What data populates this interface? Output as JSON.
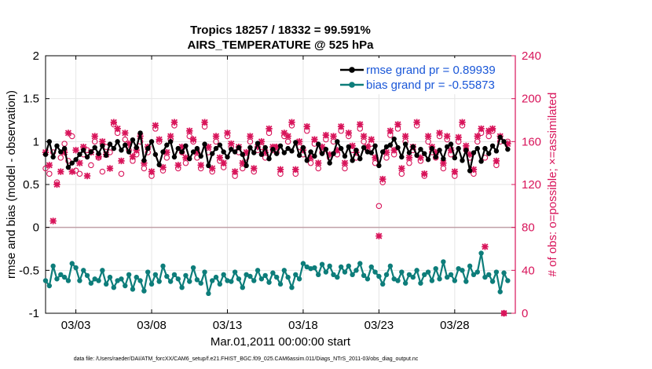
{
  "chart_data": {
    "type": "line",
    "title": "Tropics 18257 / 18332 = 99.591%",
    "subtitle": "AIRS_TEMPERATURE @ 525 hPa",
    "xlabel": "Mar.01,2011 00:00:00 start",
    "ylabel_left": "rmse and bias (model - observation)",
    "ylabel_right": "# of obs: o=possible; ×=assimilated",
    "footnote": "data file: /Users/raeder/DAI/ATM_forcXX/CAM6_setup/f.e21.FHIST_BGC.f09_025.CAM6assim.011/Diags_NTrS_2011-03/obs_diag_output.nc",
    "xlim": [
      1,
      32
    ],
    "ylim_left": [
      -1,
      2
    ],
    "ylim_right": [
      0,
      240
    ],
    "x_ticks": [
      3,
      8,
      13,
      18,
      23,
      28
    ],
    "x_tick_labels": [
      "03/03",
      "03/08",
      "03/13",
      "03/18",
      "03/23",
      "03/28"
    ],
    "y_ticks_left": [
      -1,
      -0.5,
      0,
      0.5,
      1,
      1.5,
      2
    ],
    "y_tick_labels_left": [
      "-1",
      "-0.5",
      "0",
      "0.5",
      "1",
      "1.5",
      "2"
    ],
    "y_ticks_right": [
      0,
      40,
      80,
      120,
      160,
      200,
      240
    ],
    "y_tick_labels_right": [
      "0",
      "40",
      "80",
      "120",
      "160",
      "200",
      "240"
    ],
    "colors": {
      "rmse": "#000000",
      "bias": "#0d7d7a",
      "obs": "#d8145a",
      "zero_line": "#c0a0a8",
      "legend_text": "#1a57d8",
      "grid": "#e6e6e6"
    },
    "series": [
      {
        "name": "rmse grand pr = 0.89939",
        "x": [
          1.0,
          1.25,
          1.5,
          1.75,
          2.0,
          2.25,
          2.5,
          2.75,
          3.0,
          3.25,
          3.5,
          3.75,
          4.0,
          4.25,
          4.5,
          4.75,
          5.0,
          5.25,
          5.5,
          5.75,
          6.0,
          6.25,
          6.5,
          6.75,
          7.0,
          7.25,
          7.5,
          7.75,
          8.0,
          8.25,
          8.5,
          8.75,
          9.0,
          9.25,
          9.5,
          9.75,
          10.0,
          10.25,
          10.5,
          10.75,
          11.0,
          11.25,
          11.5,
          11.75,
          12.0,
          12.25,
          12.5,
          12.75,
          13.0,
          13.25,
          13.5,
          13.75,
          14.0,
          14.25,
          14.5,
          14.75,
          15.0,
          15.25,
          15.5,
          15.75,
          16.0,
          16.25,
          16.5,
          16.75,
          17.0,
          17.25,
          17.5,
          17.75,
          18.0,
          18.25,
          18.5,
          18.75,
          19.0,
          19.25,
          19.5,
          19.75,
          20.0,
          20.25,
          20.5,
          20.75,
          21.0,
          21.25,
          21.5,
          21.75,
          22.0,
          22.25,
          22.5,
          22.75,
          23.0,
          23.25,
          23.5,
          23.75,
          24.0,
          24.25,
          24.5,
          24.75,
          25.0,
          25.25,
          25.5,
          25.75,
          26.0,
          26.25,
          26.5,
          26.75,
          27.0,
          27.25,
          27.5,
          27.75,
          28.0,
          28.25,
          28.5,
          28.75,
          29.0,
          29.25,
          29.5,
          29.75,
          30.0,
          30.25,
          30.5,
          30.75,
          31.0,
          31.25,
          31.5
        ],
        "values": [
          0.85,
          1.0,
          0.82,
          0.95,
          0.88,
          0.92,
          0.7,
          0.75,
          0.79,
          0.85,
          0.9,
          0.82,
          0.88,
          0.93,
          0.86,
          0.95,
          0.84,
          0.97,
          0.92,
          1.0,
          0.9,
          0.96,
          0.88,
          1.02,
          0.93,
          1.1,
          0.78,
          0.92,
          1.0,
          0.85,
          0.73,
          0.88,
          0.96,
          1.0,
          0.82,
          0.92,
          0.88,
          0.95,
          0.8,
          0.88,
          0.92,
          0.83,
          0.97,
          0.72,
          0.86,
          0.92,
          0.96,
          0.88,
          0.82,
          0.91,
          0.88,
          0.93,
          0.85,
          0.72,
          0.93,
          0.87,
          0.98,
          0.85,
          0.93,
          0.8,
          0.91,
          0.86,
          0.95,
          0.87,
          0.92,
          0.89,
          0.99,
          0.84,
          0.93,
          0.78,
          0.88,
          0.83,
          0.97,
          0.86,
          0.91,
          0.75,
          0.86,
          1.0,
          0.92,
          0.83,
          0.94,
          0.78,
          0.9,
          0.8,
          0.93,
          0.88,
          0.87,
          0.95,
          0.72,
          0.88,
          0.94,
          0.96,
          1.03,
          0.93,
          0.82,
          0.97,
          0.87,
          0.94,
          0.84,
          0.91,
          0.86,
          0.79,
          0.92,
          0.82,
          0.9,
          0.8,
          0.94,
          0.97,
          0.81,
          0.92,
          0.78,
          0.9,
          0.66,
          0.87,
          0.92,
          0.77,
          0.92,
          0.86,
          0.95,
          0.89,
          1.05,
          1.0,
          0.91
        ]
      },
      {
        "name": "bias grand pr = -0.55873",
        "x": [
          1.0,
          1.25,
          1.5,
          1.75,
          2.0,
          2.25,
          2.5,
          2.75,
          3.0,
          3.25,
          3.5,
          3.75,
          4.0,
          4.25,
          4.5,
          4.75,
          5.0,
          5.25,
          5.5,
          5.75,
          6.0,
          6.25,
          6.5,
          6.75,
          7.0,
          7.25,
          7.5,
          7.75,
          8.0,
          8.25,
          8.5,
          8.75,
          9.0,
          9.25,
          9.5,
          9.75,
          10.0,
          10.25,
          10.5,
          10.75,
          11.0,
          11.25,
          11.5,
          11.75,
          12.0,
          12.25,
          12.5,
          12.75,
          13.0,
          13.25,
          13.5,
          13.75,
          14.0,
          14.25,
          14.5,
          14.75,
          15.0,
          15.25,
          15.5,
          15.75,
          16.0,
          16.25,
          16.5,
          16.75,
          17.0,
          17.25,
          17.5,
          17.75,
          18.0,
          18.25,
          18.5,
          18.75,
          19.0,
          19.25,
          19.5,
          19.75,
          20.0,
          20.25,
          20.5,
          20.75,
          21.0,
          21.25,
          21.5,
          21.75,
          22.0,
          22.25,
          22.5,
          22.75,
          23.0,
          23.25,
          23.5,
          23.75,
          24.0,
          24.25,
          24.5,
          24.75,
          25.0,
          25.25,
          25.5,
          25.75,
          26.0,
          26.25,
          26.5,
          26.75,
          27.0,
          27.25,
          27.5,
          27.75,
          28.0,
          28.25,
          28.5,
          28.75,
          29.0,
          29.25,
          29.5,
          29.75,
          30.0,
          30.25,
          30.5,
          30.75,
          31.0,
          31.25,
          31.5
        ],
        "values": [
          -0.62,
          -0.68,
          -0.45,
          -0.6,
          -0.55,
          -0.58,
          -0.62,
          -0.42,
          -0.47,
          -0.62,
          -0.5,
          -0.56,
          -0.65,
          -0.6,
          -0.62,
          -0.5,
          -0.66,
          -0.58,
          -0.7,
          -0.62,
          -0.6,
          -0.68,
          -0.55,
          -0.72,
          -0.58,
          -0.62,
          -0.74,
          -0.52,
          -0.66,
          -0.55,
          -0.63,
          -0.45,
          -0.57,
          -0.63,
          -0.55,
          -0.6,
          -0.7,
          -0.56,
          -0.63,
          -0.47,
          -0.61,
          -0.65,
          -0.52,
          -0.77,
          -0.62,
          -0.58,
          -0.66,
          -0.55,
          -0.62,
          -0.63,
          -0.52,
          -0.6,
          -0.7,
          -0.55,
          -0.57,
          -0.62,
          -0.5,
          -0.6,
          -0.56,
          -0.64,
          -0.53,
          -0.58,
          -0.66,
          -0.5,
          -0.58,
          -0.7,
          -0.55,
          -0.6,
          -0.42,
          -0.46,
          -0.48,
          -0.47,
          -0.55,
          -0.43,
          -0.52,
          -0.45,
          -0.55,
          -0.58,
          -0.46,
          -0.52,
          -0.45,
          -0.55,
          -0.5,
          -0.42,
          -0.56,
          -0.6,
          -0.46,
          -0.52,
          -0.57,
          -0.66,
          -0.55,
          -0.45,
          -0.6,
          -0.62,
          -0.52,
          -0.65,
          -0.55,
          -0.58,
          -0.5,
          -0.65,
          -0.55,
          -0.52,
          -0.62,
          -0.48,
          -0.6,
          -0.4,
          -0.58,
          -0.55,
          -0.62,
          -0.48,
          -0.5,
          -0.63,
          -0.45,
          -0.55,
          -0.52,
          -0.3,
          -0.58,
          -0.55,
          -0.63,
          -0.52,
          -0.75,
          -0.53,
          -0.62
        ]
      },
      {
        "name": "obs possible",
        "marker": "o",
        "axis": "right",
        "x": [
          1.0,
          1.25,
          1.5,
          1.75,
          2.0,
          2.25,
          2.5,
          2.75,
          3.0,
          3.25,
          3.5,
          3.75,
          4.0,
          4.25,
          4.5,
          4.75,
          5.0,
          5.25,
          5.5,
          5.75,
          6.0,
          6.25,
          6.5,
          6.75,
          7.0,
          7.25,
          7.5,
          7.75,
          8.0,
          8.25,
          8.5,
          8.75,
          9.0,
          9.25,
          9.5,
          9.75,
          10.0,
          10.25,
          10.5,
          10.75,
          11.0,
          11.25,
          11.5,
          11.75,
          12.0,
          12.25,
          12.5,
          12.75,
          13.0,
          13.25,
          13.5,
          13.75,
          14.0,
          14.25,
          14.5,
          14.75,
          15.0,
          15.25,
          15.5,
          15.75,
          16.0,
          16.25,
          16.5,
          16.75,
          17.0,
          17.25,
          17.5,
          17.75,
          18.0,
          18.25,
          18.5,
          18.75,
          19.0,
          19.25,
          19.5,
          19.75,
          20.0,
          20.25,
          20.5,
          20.75,
          21.0,
          21.25,
          21.5,
          21.75,
          22.0,
          22.25,
          22.5,
          22.75,
          23.0,
          23.25,
          23.5,
          23.75,
          24.0,
          24.25,
          24.5,
          24.75,
          25.0,
          25.25,
          25.5,
          25.75,
          26.0,
          26.25,
          26.5,
          26.75,
          27.0,
          27.25,
          27.5,
          27.75,
          28.0,
          28.25,
          28.5,
          28.75,
          29.0,
          29.25,
          29.5,
          29.75,
          30.0,
          30.25,
          30.5,
          30.75,
          31.0,
          31.25,
          31.5
        ],
        "values": [
          135,
          130,
          150,
          122,
          145,
          158,
          142,
          165,
          133,
          130,
          148,
          152,
          138,
          160,
          145,
          132,
          155,
          150,
          176,
          168,
          130,
          162,
          152,
          142,
          148,
          160,
          135,
          150,
          128,
          172,
          160,
          133,
          145,
          162,
          175,
          135,
          150,
          140,
          165,
          160,
          145,
          135,
          174,
          150,
          132,
          160,
          142,
          136,
          165,
          155,
          128,
          150,
          135,
          145,
          160,
          132,
          152,
          155,
          145,
          168,
          152,
          150,
          130,
          165,
          160,
          175,
          130,
          155,
          148,
          170,
          140,
          158,
          135,
          150,
          162,
          145,
          160,
          148,
          170,
          135,
          165,
          152,
          145,
          172,
          160,
          152,
          158,
          140,
          100,
          122,
          145,
          166,
          148,
          172,
          130,
          160,
          140,
          152,
          175,
          142,
          128,
          160,
          150,
          145,
          165,
          135,
          162,
          148,
          128,
          160,
          175,
          152,
          145,
          130,
          160,
          168,
          145,
          165,
          170,
          138,
          160,
          0,
          160
        ]
      },
      {
        "name": "obs assimilated",
        "marker": "x",
        "axis": "right",
        "x": [
          1.0,
          1.25,
          1.5,
          1.75,
          2.0,
          2.25,
          2.5,
          2.75,
          3.0,
          3.25,
          3.5,
          3.75,
          4.0,
          4.25,
          4.5,
          4.75,
          5.0,
          5.25,
          5.5,
          5.75,
          6.0,
          6.25,
          6.5,
          6.75,
          7.0,
          7.25,
          7.5,
          7.75,
          8.0,
          8.25,
          8.5,
          8.75,
          9.0,
          9.25,
          9.5,
          9.75,
          10.0,
          10.25,
          10.5,
          10.75,
          11.0,
          11.25,
          11.5,
          11.75,
          12.0,
          12.25,
          12.5,
          12.75,
          13.0,
          13.25,
          13.5,
          13.75,
          14.0,
          14.25,
          14.5,
          14.75,
          15.0,
          15.25,
          15.5,
          15.75,
          16.0,
          16.25,
          16.5,
          16.75,
          17.0,
          17.25,
          17.5,
          17.75,
          18.0,
          18.25,
          18.5,
          18.75,
          19.0,
          19.25,
          19.5,
          19.75,
          20.0,
          20.25,
          20.5,
          20.75,
          21.0,
          21.25,
          21.5,
          21.75,
          22.0,
          22.25,
          22.5,
          22.75,
          23.0,
          23.25,
          23.5,
          23.75,
          24.0,
          24.25,
          24.5,
          24.75,
          25.0,
          25.25,
          25.5,
          25.75,
          26.0,
          26.25,
          26.5,
          26.75,
          27.0,
          27.25,
          27.5,
          27.75,
          28.0,
          28.25,
          28.5,
          28.75,
          29.0,
          29.25,
          29.5,
          29.75,
          30.0,
          30.25,
          30.5,
          30.75,
          31.0,
          31.25,
          31.5
        ],
        "values": [
          150,
          138,
          86,
          120,
          132,
          150,
          168,
          132,
          152,
          140,
          155,
          128,
          150,
          165,
          146,
          160,
          148,
          135,
          178,
          172,
          142,
          168,
          158,
          146,
          152,
          165,
          140,
          155,
          132,
          175,
          162,
          136,
          150,
          165,
          178,
          138,
          155,
          145,
          170,
          162,
          150,
          138,
          178,
          155,
          135,
          165,
          145,
          140,
          168,
          158,
          132,
          155,
          140,
          150,
          165,
          135,
          155,
          160,
          150,
          172,
          155,
          155,
          134,
          168,
          165,
          178,
          134,
          160,
          152,
          174,
          145,
          162,
          140,
          155,
          166,
          148,
          165,
          152,
          174,
          140,
          168,
          156,
          150,
          176,
          165,
          155,
          162,
          145,
          72,
          125,
          150,
          170,
          152,
          176,
          135,
          165,
          145,
          155,
          178,
          145,
          130,
          165,
          155,
          150,
          168,
          140,
          165,
          152,
          132,
          164,
          178,
          156,
          148,
          134,
          165,
          172,
          62,
          170,
          172,
          142,
          165,
          0,
          158
        ]
      }
    ]
  }
}
